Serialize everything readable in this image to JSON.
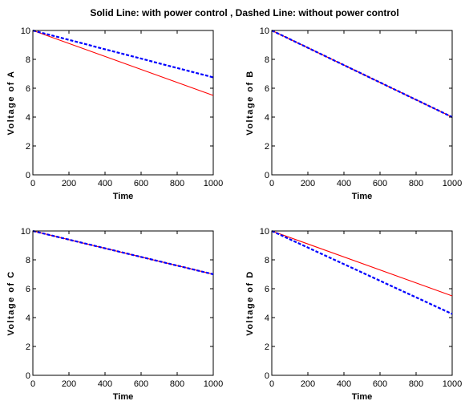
{
  "figure_title": "Solid Line: with power control , Dashed Line: without power control",
  "colors": {
    "solid": "#ff0000",
    "dashed": "#0000ff",
    "axis": "#000000"
  },
  "chart_data": [
    {
      "type": "line",
      "title": "",
      "xlabel": "Time",
      "ylabel": "Voltage of A",
      "xlim": [
        0,
        1000
      ],
      "ylim": [
        0,
        10
      ],
      "xticks": [
        0,
        200,
        400,
        600,
        800,
        1000
      ],
      "yticks": [
        0,
        2,
        4,
        6,
        8,
        10
      ],
      "grid": false,
      "series": [
        {
          "style": "solid",
          "color": "#ff0000",
          "x": [
            0,
            1000
          ],
          "y": [
            10,
            5.5
          ]
        },
        {
          "style": "dashed",
          "color": "#0000ff",
          "x": [
            0,
            1000
          ],
          "y": [
            10,
            6.75
          ]
        }
      ]
    },
    {
      "type": "line",
      "title": "",
      "xlabel": "Time",
      "ylabel": "Voltage of B",
      "xlim": [
        0,
        1000
      ],
      "ylim": [
        0,
        10
      ],
      "xticks": [
        0,
        200,
        400,
        600,
        800,
        1000
      ],
      "yticks": [
        0,
        2,
        4,
        6,
        8,
        10
      ],
      "grid": false,
      "series": [
        {
          "style": "solid",
          "color": "#ff0000",
          "x": [
            0,
            1000
          ],
          "y": [
            10,
            4.0
          ]
        },
        {
          "style": "dashed",
          "color": "#0000ff",
          "x": [
            0,
            1000
          ],
          "y": [
            10,
            4.0
          ]
        }
      ]
    },
    {
      "type": "line",
      "title": "",
      "xlabel": "Time",
      "ylabel": "Voltage of C",
      "xlim": [
        0,
        1000
      ],
      "ylim": [
        0,
        10
      ],
      "xticks": [
        0,
        200,
        400,
        600,
        800,
        1000
      ],
      "yticks": [
        0,
        2,
        4,
        6,
        8,
        10
      ],
      "grid": false,
      "series": [
        {
          "style": "solid",
          "color": "#ff0000",
          "x": [
            0,
            1000
          ],
          "y": [
            10,
            7.0
          ]
        },
        {
          "style": "dashed",
          "color": "#0000ff",
          "x": [
            0,
            1000
          ],
          "y": [
            10,
            7.0
          ]
        }
      ]
    },
    {
      "type": "line",
      "title": "",
      "xlabel": "Time",
      "ylabel": "Voltage of D",
      "xlim": [
        0,
        1000
      ],
      "ylim": [
        0,
        10
      ],
      "xticks": [
        0,
        200,
        400,
        600,
        800,
        1000
      ],
      "yticks": [
        0,
        2,
        4,
        6,
        8,
        10
      ],
      "grid": false,
      "series": [
        {
          "style": "solid",
          "color": "#ff0000",
          "x": [
            0,
            1000
          ],
          "y": [
            10,
            5.5
          ]
        },
        {
          "style": "dashed",
          "color": "#0000ff",
          "x": [
            0,
            1000
          ],
          "y": [
            10,
            4.25
          ]
        }
      ]
    }
  ]
}
